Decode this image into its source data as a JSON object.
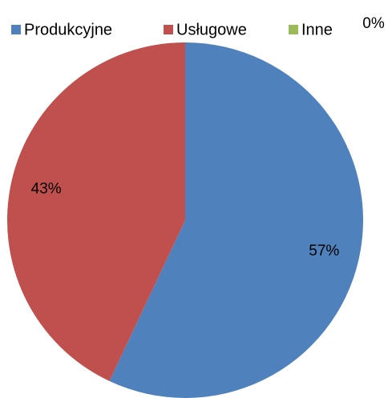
{
  "chart_data": {
    "type": "pie",
    "categories": [
      "Produkcyjne",
      "Usługowe",
      "Inne"
    ],
    "values": [
      57,
      43,
      0
    ],
    "value_labels": [
      "57%",
      "43%",
      "0%"
    ],
    "colors": [
      "#4f81bd",
      "#c0504d",
      "#9bbb59"
    ],
    "legend": "top"
  }
}
